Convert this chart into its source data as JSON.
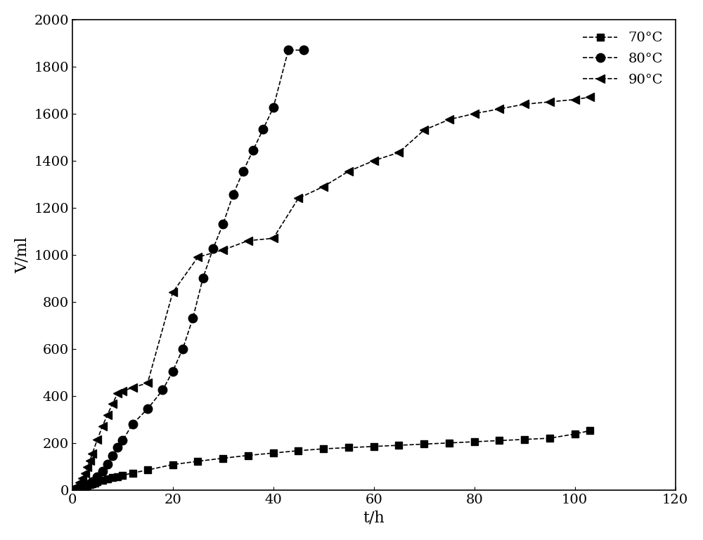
{
  "series_70": {
    "label": "70°C",
    "x": [
      0,
      0.5,
      1,
      1.5,
      2,
      2.5,
      3,
      3.5,
      4,
      4.5,
      5,
      6,
      7,
      8,
      9,
      10,
      12,
      15,
      20,
      25,
      30,
      35,
      40,
      45,
      50,
      55,
      60,
      65,
      70,
      75,
      80,
      85,
      90,
      95,
      100,
      103
    ],
    "y": [
      0,
      2,
      4,
      7,
      10,
      14,
      18,
      22,
      26,
      30,
      34,
      40,
      46,
      52,
      57,
      62,
      72,
      85,
      108,
      122,
      135,
      147,
      157,
      167,
      175,
      180,
      185,
      190,
      195,
      200,
      205,
      210,
      215,
      220,
      238,
      252
    ],
    "color": "#000000",
    "linestyle": "--",
    "marker": "s",
    "markersize": 7
  },
  "series_80": {
    "label": "80°C",
    "x": [
      0,
      1,
      2,
      3,
      4,
      5,
      6,
      7,
      8,
      9,
      10,
      12,
      15,
      18,
      20,
      22,
      24,
      26,
      28,
      30,
      32,
      34,
      36,
      38,
      40,
      43,
      46
    ],
    "y": [
      0,
      5,
      12,
      22,
      35,
      55,
      80,
      110,
      145,
      180,
      210,
      280,
      345,
      425,
      505,
      600,
      730,
      900,
      1025,
      1130,
      1255,
      1355,
      1445,
      1535,
      1625,
      1870,
      1870
    ],
    "color": "#000000",
    "linestyle": "--",
    "marker": "o",
    "markersize": 9
  },
  "series_90": {
    "label": "90°C",
    "x": [
      0,
      0.5,
      1,
      1.5,
      2,
      2.5,
      3,
      3.5,
      4,
      5,
      6,
      7,
      8,
      9,
      10,
      12,
      15,
      20,
      25,
      30,
      35,
      40,
      45,
      50,
      55,
      60,
      65,
      70,
      75,
      80,
      85,
      90,
      95,
      100,
      103
    ],
    "y": [
      0,
      8,
      18,
      32,
      50,
      72,
      97,
      125,
      155,
      215,
      270,
      320,
      365,
      410,
      420,
      435,
      455,
      840,
      990,
      1020,
      1060,
      1070,
      1240,
      1290,
      1355,
      1400,
      1435,
      1530,
      1575,
      1600,
      1620,
      1640,
      1650,
      1660,
      1670
    ],
    "color": "#000000",
    "linestyle": "--",
    "marker": "<",
    "markersize": 9
  },
  "xlabel": "t/h",
  "ylabel": "V/ml",
  "xlim": [
    0,
    120
  ],
  "ylim": [
    0,
    2000
  ],
  "xticks": [
    0,
    20,
    40,
    60,
    80,
    100,
    120
  ],
  "yticks": [
    0,
    200,
    400,
    600,
    800,
    1000,
    1200,
    1400,
    1600,
    1800,
    2000
  ],
  "background_color": "#ffffff",
  "legend_fontsize": 14,
  "axis_fontsize": 16,
  "tick_fontsize": 14
}
